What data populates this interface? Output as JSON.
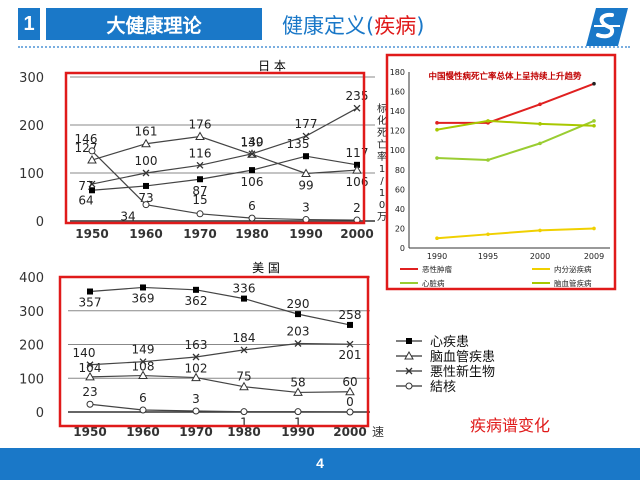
{
  "header": {
    "number": "1",
    "topic": "大健康理论",
    "subtitle_prefix": "健康定义(",
    "subtitle_red": "疾病",
    "subtitle_suffix": ")"
  },
  "footer": {
    "page": "4"
  },
  "note": "疾病谱变化",
  "colors": {
    "brand": "#1a78c8",
    "highlight": "#e01a1a"
  },
  "chart_data": [
    {
      "type": "line",
      "title": "日 本",
      "x": [
        1950,
        1960,
        1970,
        1980,
        1990,
        2000
      ],
      "ylim": [
        0,
        300
      ],
      "yticks": [
        "0",
        "100",
        "200",
        "300"
      ],
      "ylabel": "标化死亡率1/10万",
      "series": [
        {
          "name": "心疾患",
          "marker": "square",
          "values": [
            64,
            73,
            87,
            106,
            135,
            117
          ],
          "labels": [
            "64",
            "73",
            "87",
            "106",
            "135",
            "117"
          ]
        },
        {
          "name": "脑血管疾患",
          "marker": "triangle",
          "values": [
            127,
            161,
            176,
            139,
            99,
            106
          ],
          "labels": [
            "127",
            "161",
            "176",
            "139",
            "99",
            "106"
          ]
        },
        {
          "name": "悪性新生物",
          "marker": "cross",
          "values": [
            77,
            100,
            116,
            140,
            177,
            235
          ],
          "labels": [
            "77",
            "100",
            "116",
            "140",
            "177",
            "235"
          ]
        },
        {
          "name": "結核",
          "marker": "circle",
          "values": [
            146,
            34,
            15,
            6,
            3,
            2
          ],
          "labels": [
            "146",
            "34",
            "15",
            "6",
            "3",
            "2"
          ]
        }
      ]
    },
    {
      "type": "line",
      "title": "中国慢性病死亡率总体上呈持续上升趋势",
      "x": [
        1990,
        1995,
        2000,
        2009
      ],
      "ylim": [
        0,
        180
      ],
      "yticks": [
        "0",
        "20",
        "40",
        "60",
        "80",
        "100",
        "120",
        "140",
        "160",
        "180"
      ],
      "series": [
        {
          "name": "恶性肿瘤",
          "color": "#e02020",
          "values": [
            128,
            128,
            147,
            168
          ]
        },
        {
          "name": "内分泌疾病",
          "color": "#f0d000",
          "values": [
            10,
            14,
            18,
            20
          ]
        },
        {
          "name": "心脏病",
          "color": "#9acd32",
          "values": [
            92,
            90,
            107,
            130
          ]
        },
        {
          "name": "脑血管疾病",
          "color": "#a8c800",
          "values": [
            121,
            130,
            127,
            125
          ]
        }
      ]
    },
    {
      "type": "line",
      "title": "美 国",
      "x": [
        1950,
        1960,
        1970,
        1980,
        1990,
        2000
      ],
      "xlabel_suffix": "速",
      "ylim": [
        0,
        400
      ],
      "yticks": [
        "0",
        "100",
        "200",
        "300",
        "400"
      ],
      "series": [
        {
          "name": "心疾患",
          "marker": "square",
          "values": [
            357,
            369,
            362,
            336,
            290,
            258
          ],
          "labels": [
            "357",
            "369",
            "362",
            "336",
            "290",
            "258"
          ]
        },
        {
          "name": "脑血管疾患",
          "marker": "triangle",
          "values": [
            104,
            108,
            102,
            75,
            58,
            60
          ],
          "labels": [
            "104",
            "108",
            "102",
            "75",
            "58",
            "60"
          ]
        },
        {
          "name": "悪性新生物",
          "marker": "cross",
          "values": [
            140,
            149,
            163,
            184,
            203,
            201
          ],
          "labels": [
            "140",
            "149",
            "163",
            "184",
            "203",
            "201"
          ]
        },
        {
          "name": "結核",
          "marker": "circle",
          "values": [
            23,
            6,
            3,
            1,
            1,
            0
          ],
          "labels": [
            "23",
            "6",
            "3",
            "1",
            "1",
            "0"
          ]
        }
      ]
    }
  ]
}
